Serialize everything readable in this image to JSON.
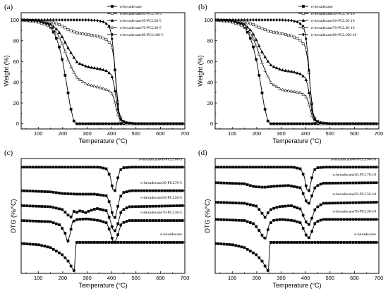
{
  "chart_data": [
    {
      "panel": "(a)",
      "type": "line",
      "xlabel": "Temperature (°C)",
      "ylabel": "Weight (%)",
      "xlim": [
        30,
        700
      ],
      "ylim": [
        -5,
        107
      ],
      "xticks": [
        100,
        200,
        300,
        400,
        500,
        600,
        700
      ],
      "yticks": [
        0,
        20,
        40,
        60,
        80,
        100
      ],
      "legend_position": "top-right",
      "series": [
        {
          "name": "n-hexadecane",
          "marker": "filled-square",
          "x": [
            30,
            100,
            130,
            150,
            170,
            185,
            200,
            215,
            230,
            245,
            255,
            700
          ],
          "y": [
            100,
            99,
            97,
            93,
            85,
            75,
            60,
            40,
            18,
            3,
            0,
            0
          ]
        },
        {
          "name": "n-hexadecane30-PCL70-5",
          "marker": "open-square",
          "x": [
            30,
            100,
            150,
            180,
            200,
            220,
            250,
            300,
            350,
            380,
            400,
            410,
            420,
            430,
            440,
            460,
            500,
            700
          ],
          "y": [
            100,
            99.5,
            98,
            96,
            94,
            91,
            88,
            86,
            84,
            81,
            76,
            63,
            35,
            12,
            4,
            1,
            0,
            0
          ]
        },
        {
          "name": "n-hexadecane50-PCL50-5",
          "marker": "filled-triangle",
          "x": [
            30,
            100,
            150,
            180,
            200,
            220,
            240,
            260,
            300,
            350,
            380,
            400,
            410,
            420,
            430,
            440,
            460,
            500,
            700
          ],
          "y": [
            100,
            99,
            96,
            90,
            83,
            74,
            66,
            59,
            55,
            53,
            51,
            47,
            38,
            22,
            9,
            3,
            1,
            0,
            0
          ]
        },
        {
          "name": "n-hexadecane70-PCL30-5",
          "marker": "open-triangle",
          "x": [
            30,
            100,
            150,
            180,
            200,
            220,
            240,
            260,
            300,
            350,
            380,
            400,
            410,
            420,
            430,
            440,
            460,
            500,
            700
          ],
          "y": [
            100,
            98,
            94,
            86,
            76,
            63,
            52,
            44,
            38,
            35,
            33,
            30,
            24,
            14,
            6,
            2,
            0,
            0,
            0
          ]
        },
        {
          "name": "n-hexadecane00-PCL100-5",
          "marker": "filled-diamond",
          "x": [
            30,
            300,
            340,
            370,
            390,
            400,
            410,
            420,
            430,
            440,
            460,
            500,
            700
          ],
          "y": [
            100,
            100,
            99.5,
            98,
            94,
            86,
            65,
            32,
            10,
            3,
            1,
            0,
            0
          ]
        }
      ]
    },
    {
      "panel": "(b)",
      "type": "line",
      "xlabel": "Temperature (°C)",
      "ylabel": "Weight (%)",
      "xlim": [
        30,
        700
      ],
      "ylim": [
        -5,
        107
      ],
      "xticks": [
        100,
        200,
        300,
        400,
        500,
        600,
        700
      ],
      "yticks": [
        0,
        20,
        40,
        60,
        80,
        100
      ],
      "legend_position": "top-right",
      "series": [
        {
          "name": "n-hexadecane",
          "marker": "filled-square",
          "x": [
            30,
            100,
            130,
            150,
            170,
            185,
            200,
            215,
            230,
            245,
            255,
            700
          ],
          "y": [
            100,
            99,
            97,
            93,
            85,
            75,
            60,
            40,
            18,
            3,
            0,
            0
          ]
        },
        {
          "name": "n-hexadecane30-PCL70-10",
          "marker": "open-square",
          "x": [
            30,
            100,
            150,
            180,
            200,
            220,
            250,
            300,
            350,
            380,
            400,
            410,
            420,
            430,
            440,
            460,
            500,
            700
          ],
          "y": [
            100,
            99.5,
            98,
            96,
            94,
            92,
            89,
            87,
            84,
            80,
            74,
            60,
            33,
            11,
            4,
            1,
            0,
            0
          ]
        },
        {
          "name": "n-hexadecane50-PCL50-10",
          "marker": "filled-triangle",
          "x": [
            30,
            100,
            150,
            180,
            200,
            220,
            240,
            260,
            300,
            350,
            380,
            400,
            410,
            420,
            430,
            440,
            460,
            500,
            700
          ],
          "y": [
            100,
            99,
            96,
            89,
            80,
            70,
            62,
            56,
            52,
            50,
            48,
            44,
            36,
            21,
            8,
            3,
            1,
            0,
            0
          ]
        },
        {
          "name": "n-hexadecane70-PCL30-10",
          "marker": "open-triangle",
          "x": [
            30,
            100,
            150,
            180,
            200,
            220,
            240,
            260,
            300,
            350,
            380,
            400,
            410,
            420,
            430,
            440,
            460,
            500,
            700
          ],
          "y": [
            100,
            98,
            94,
            85,
            74,
            60,
            48,
            39,
            33,
            31,
            30,
            27,
            22,
            13,
            5,
            2,
            0,
            0,
            0
          ]
        },
        {
          "name": "n-hexadecane00-PCL100-10",
          "marker": "filled-diamond",
          "x": [
            30,
            300,
            340,
            370,
            390,
            400,
            410,
            420,
            430,
            440,
            460,
            500,
            700
          ],
          "y": [
            100,
            100,
            99.5,
            98,
            94,
            86,
            65,
            32,
            10,
            3,
            1,
            0,
            0
          ]
        }
      ]
    },
    {
      "panel": "(c)",
      "type": "line",
      "xlabel": "Temperature (°C)",
      "ylabel": "DTG (%/°C)",
      "xlim": [
        30,
        700
      ],
      "ylim": [
        -10,
        10
      ],
      "xticks": [
        100,
        200,
        300,
        400,
        500,
        600,
        700
      ],
      "yticks": [],
      "series": [
        {
          "name": "n-hexadecane00-PCL100-5",
          "marker": "filled-square",
          "x": [
            30,
            350,
            380,
            395,
            405,
            415,
            425,
            435,
            450,
            480,
            700
          ],
          "y": [
            8.5,
            8.5,
            8.2,
            6.8,
            4.6,
            4.4,
            6.5,
            8.0,
            8.4,
            8.5,
            8.5
          ]
        },
        {
          "name": "n-hexadecane30-PCL70-5",
          "marker": "filled-square",
          "x": [
            30,
            150,
            200,
            260,
            330,
            380,
            395,
            405,
            415,
            425,
            435,
            450,
            480,
            700
          ],
          "y": [
            4.4,
            4.2,
            3.9,
            3.8,
            3.8,
            3.5,
            2.0,
            0.0,
            -0.3,
            1.5,
            3.3,
            4.1,
            4.4,
            4.4
          ]
        },
        {
          "name": "n-hexadecane50-PCL50-5",
          "marker": "filled-square",
          "x": [
            30,
            150,
            200,
            220,
            235,
            245,
            260,
            275,
            290,
            310,
            340,
            380,
            395,
            405,
            415,
            425,
            440,
            470,
            700
          ],
          "y": [
            1.8,
            1.6,
            1.1,
            0.2,
            -0.2,
            0.8,
            0.6,
            1.0,
            0.5,
            0.9,
            1.3,
            0.9,
            -0.8,
            -2.3,
            -2.6,
            -1.5,
            0.9,
            1.6,
            1.8
          ]
        },
        {
          "name": "n-hexadecane70-PCL30-5",
          "marker": "filled-square",
          "x": [
            30,
            150,
            190,
            210,
            220,
            230,
            240,
            260,
            300,
            350,
            380,
            395,
            405,
            415,
            425,
            440,
            470,
            700
          ],
          "y": [
            -0.8,
            -1.0,
            -1.6,
            -3.0,
            -4.6,
            -3.2,
            -1.0,
            -0.6,
            -0.5,
            -0.8,
            -1.2,
            -2.8,
            -4.3,
            -4.6,
            -3.4,
            -1.3,
            -0.8,
            -0.8
          ]
        },
        {
          "name": "n-hexadecane",
          "marker": "filled-square",
          "x": [
            30,
            100,
            150,
            200,
            225,
            240,
            248,
            252,
            256,
            300,
            700
          ],
          "y": [
            -4.8,
            -5.0,
            -5.5,
            -6.8,
            -8.0,
            -9.2,
            -9.6,
            -6.0,
            -4.6,
            -4.6,
            -4.6
          ]
        }
      ]
    },
    {
      "panel": "(d)",
      "type": "line",
      "xlabel": "Temperature (°C)",
      "ylabel": "DTG (%/°C)",
      "xlim": [
        30,
        700
      ],
      "ylim": [
        -10,
        10
      ],
      "xticks": [
        100,
        200,
        300,
        400,
        500,
        600,
        700
      ],
      "yticks": [],
      "series": [
        {
          "name": "n-hexadecane00-PCL100-10",
          "marker": "filled-square",
          "x": [
            30,
            350,
            380,
            395,
            405,
            415,
            425,
            435,
            450,
            480,
            700
          ],
          "y": [
            8.5,
            8.5,
            8.2,
            6.8,
            4.6,
            4.4,
            6.5,
            8.0,
            8.4,
            8.5,
            8.5
          ]
        },
        {
          "name": "n-hexadecane30-PCL70-10",
          "marker": "filled-square",
          "x": [
            30,
            150,
            190,
            230,
            280,
            330,
            380,
            395,
            405,
            415,
            425,
            440,
            470,
            700
          ],
          "y": [
            5.8,
            5.6,
            5.1,
            5.0,
            5.2,
            5.3,
            4.9,
            3.4,
            2.3,
            2.2,
            3.4,
            5.1,
            5.7,
            5.8
          ]
        },
        {
          "name": "n-hexadecane50-PCL50-10",
          "marker": "filled-square",
          "x": [
            30,
            150,
            200,
            225,
            235,
            245,
            260,
            290,
            340,
            380,
            395,
            405,
            415,
            425,
            440,
            470,
            700
          ],
          "y": [
            2.4,
            2.2,
            1.7,
            0.3,
            -0.3,
            0.5,
            1.2,
            1.6,
            1.8,
            1.2,
            -0.4,
            -1.3,
            -1.5,
            -0.5,
            1.3,
            2.2,
            2.4
          ]
        },
        {
          "name": "n-hexadecane70-PCL30-10",
          "marker": "filled-square",
          "x": [
            30,
            150,
            190,
            215,
            230,
            240,
            250,
            265,
            300,
            350,
            380,
            395,
            405,
            415,
            425,
            440,
            470,
            700
          ],
          "y": [
            -0.6,
            -0.8,
            -1.4,
            -2.8,
            -4.0,
            -3.6,
            -1.6,
            -0.8,
            -0.6,
            -0.8,
            -1.2,
            -2.6,
            -3.6,
            -3.8,
            -2.8,
            -1.1,
            -0.6,
            -0.6
          ]
        },
        {
          "name": "n-hexadecane",
          "marker": "filled-square",
          "x": [
            30,
            100,
            150,
            200,
            225,
            240,
            248,
            252,
            256,
            300,
            700
          ],
          "y": [
            -4.8,
            -5.0,
            -5.5,
            -6.8,
            -8.0,
            -9.2,
            -9.6,
            -6.0,
            -4.6,
            -4.6,
            -4.6
          ]
        }
      ]
    }
  ]
}
